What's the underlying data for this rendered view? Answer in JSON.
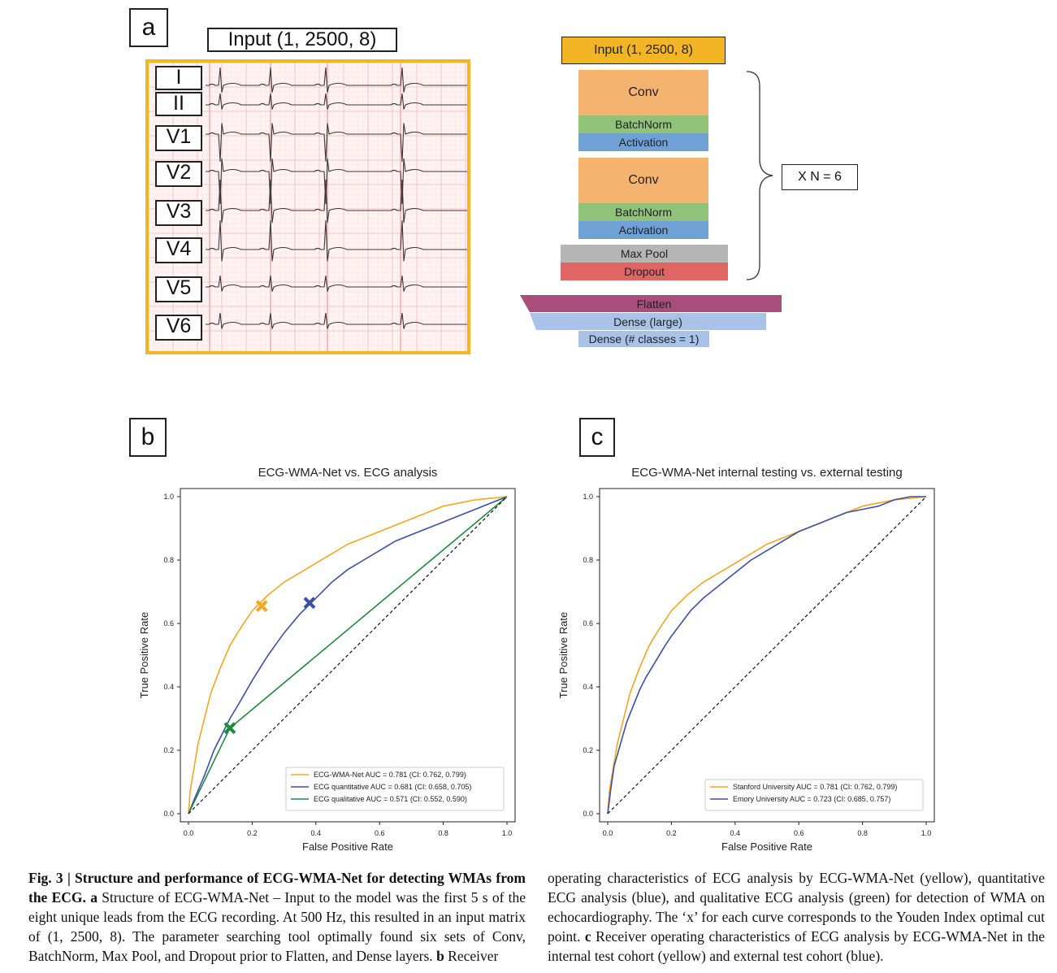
{
  "panel_a": {
    "letter": "a",
    "input_label": "Input (1, 2500, 8)",
    "leads": [
      "I",
      "II",
      "V1",
      "V2",
      "V3",
      "V4",
      "V5",
      "V6"
    ],
    "arch": {
      "input": "Input (1, 2500, 8)",
      "conv1": "Conv",
      "bn1": "BatchNorm",
      "act1": "Activation",
      "conv2": "Conv",
      "bn2": "BatchNorm",
      "act2": "Activation",
      "maxpool": "Max Pool",
      "dropout": "Dropout",
      "repeat": "X N = 6",
      "flatten": "Flatten",
      "dense_large": "Dense (large)",
      "dense_out": "Dense (# classes = 1)"
    },
    "colors": {
      "input": "#f4b524",
      "conv": "#f4b36e",
      "batchnorm": "#91c27a",
      "activation": "#6fa1d6",
      "maxpool": "#b5b5b5",
      "dropout": "#e06666",
      "flatten": "#a94e7a",
      "dense": "#a9c3e8",
      "ecg_border": "#f4b524"
    }
  },
  "panel_b": {
    "letter": "b"
  },
  "panel_c": {
    "letter": "c"
  },
  "chart_data": [
    {
      "type": "line",
      "title": "ECG-WMA-Net vs. ECG analysis",
      "xlabel": "False Positive Rate",
      "ylabel": "True Positive Rate",
      "xlim": [
        0,
        1
      ],
      "ylim": [
        0,
        1
      ],
      "xticks": [
        "0.0",
        "0.2",
        "0.4",
        "0.6",
        "0.8",
        "1.0"
      ],
      "yticks": [
        "0.0",
        "0.2",
        "0.4",
        "0.6",
        "0.8",
        "1.0"
      ],
      "legend_position": "lower-right",
      "series": [
        {
          "name": "ECG-WMA-Net AUC = 0.781 (CI: 0.762, 0.799)",
          "color": "#f5a623",
          "x": [
            0,
            0.005,
            0.01,
            0.02,
            0.03,
            0.05,
            0.07,
            0.1,
            0.13,
            0.16,
            0.2,
            0.25,
            0.3,
            0.35,
            0.4,
            0.45,
            0.5,
            0.55,
            0.6,
            0.65,
            0.7,
            0.75,
            0.8,
            0.85,
            0.9,
            0.95,
            1.0
          ],
          "y": [
            0,
            0.07,
            0.1,
            0.16,
            0.22,
            0.3,
            0.38,
            0.46,
            0.53,
            0.58,
            0.64,
            0.69,
            0.73,
            0.76,
            0.79,
            0.82,
            0.85,
            0.87,
            0.89,
            0.91,
            0.93,
            0.95,
            0.97,
            0.98,
            0.99,
            0.995,
            1.0
          ]
        },
        {
          "name": "ECG quantitative AUC = 0.681 (CI: 0.658, 0.705)",
          "color": "#3b4fa8",
          "x": [
            0,
            0.02,
            0.05,
            0.08,
            0.1,
            0.13,
            0.16,
            0.2,
            0.25,
            0.3,
            0.35,
            0.4,
            0.45,
            0.5,
            0.55,
            0.6,
            0.65,
            0.7,
            0.75,
            0.8,
            0.85,
            0.9,
            0.95,
            1.0
          ],
          "y": [
            0,
            0.05,
            0.12,
            0.2,
            0.24,
            0.3,
            0.35,
            0.42,
            0.5,
            0.57,
            0.63,
            0.68,
            0.73,
            0.77,
            0.8,
            0.83,
            0.86,
            0.88,
            0.9,
            0.92,
            0.94,
            0.96,
            0.98,
            1.0
          ]
        },
        {
          "name": "ECG qualitative AUC = 0.571 (CI: 0.552, 0.590)",
          "color": "#1f8a3b",
          "x": [
            0,
            0.13,
            1.0
          ],
          "y": [
            0,
            0.27,
            1.0
          ]
        },
        {
          "name": "chance",
          "color": "#111111",
          "dashed": true,
          "x": [
            0,
            1
          ],
          "y": [
            0,
            1
          ]
        }
      ],
      "markers": [
        {
          "series": "ECG-WMA-Net",
          "x": 0.23,
          "y": 0.655,
          "color": "#f5a623"
        },
        {
          "series": "ECG quantitative",
          "x": 0.38,
          "y": 0.665,
          "color": "#3b4fa8"
        },
        {
          "series": "ECG qualitative",
          "x": 0.13,
          "y": 0.27,
          "color": "#1f8a3b"
        }
      ]
    },
    {
      "type": "line",
      "title": "ECG-WMA-Net internal testing vs. external testing",
      "xlabel": "False Positive Rate",
      "ylabel": "True Positive Rate",
      "xlim": [
        0,
        1
      ],
      "ylim": [
        0,
        1
      ],
      "xticks": [
        "0.0",
        "0.2",
        "0.4",
        "0.6",
        "0.8",
        "1.0"
      ],
      "yticks": [
        "0.0",
        "0.2",
        "0.4",
        "0.6",
        "0.8",
        "1.0"
      ],
      "legend_position": "lower-right",
      "series": [
        {
          "name": "Stanford University AUC = 0.781 (CI: 0.762, 0.799)",
          "color": "#f5a623",
          "x": [
            0,
            0.005,
            0.01,
            0.02,
            0.03,
            0.05,
            0.07,
            0.1,
            0.13,
            0.16,
            0.2,
            0.25,
            0.3,
            0.35,
            0.4,
            0.45,
            0.5,
            0.55,
            0.6,
            0.65,
            0.7,
            0.75,
            0.8,
            0.85,
            0.9,
            0.95,
            1.0
          ],
          "y": [
            0,
            0.07,
            0.1,
            0.16,
            0.22,
            0.3,
            0.38,
            0.46,
            0.53,
            0.58,
            0.64,
            0.69,
            0.73,
            0.76,
            0.79,
            0.82,
            0.85,
            0.87,
            0.89,
            0.91,
            0.93,
            0.95,
            0.97,
            0.98,
            0.99,
            0.995,
            1.0
          ]
        },
        {
          "name": "Emory University AUC = 0.723 (CI: 0.685, 0.757)",
          "color": "#3b4fa8",
          "x": [
            0,
            0.01,
            0.02,
            0.04,
            0.06,
            0.08,
            0.1,
            0.12,
            0.15,
            0.18,
            0.2,
            0.23,
            0.26,
            0.3,
            0.35,
            0.4,
            0.45,
            0.5,
            0.55,
            0.6,
            0.65,
            0.7,
            0.75,
            0.8,
            0.85,
            0.9,
            0.95,
            1.0
          ],
          "y": [
            0,
            0.08,
            0.15,
            0.22,
            0.29,
            0.34,
            0.39,
            0.43,
            0.48,
            0.53,
            0.56,
            0.6,
            0.64,
            0.68,
            0.72,
            0.76,
            0.8,
            0.83,
            0.86,
            0.89,
            0.91,
            0.93,
            0.95,
            0.96,
            0.97,
            0.99,
            1.0,
            1.0
          ]
        },
        {
          "name": "chance",
          "color": "#111111",
          "dashed": true,
          "x": [
            0,
            1
          ],
          "y": [
            0,
            1
          ]
        }
      ],
      "markers": []
    }
  ],
  "caption": {
    "left_bold_1": "Fig. 3 | Structure and performance of ECG-WMA-Net for detecting WMAs from the ECG.",
    "left_bold_a": "a",
    "left_text_1": "Structure of ECG-WMA-Net – Input to the model was the first 5 s of the eight unique leads from the ECG recording. At 500 Hz, this resulted in an input matrix of (1, 2500, 8). The parameter searching tool optimally found six sets of Conv, BatchNorm, Max Pool, and Dropout prior to Flatten, and Dense layers.",
    "left_bold_b": "b",
    "left_text_2": "Receiver",
    "right_text_1": "operating characteristics of ECG analysis by ECG-WMA-Net (yellow), quantitative ECG analysis (blue), and qualitative ECG analysis (green) for detection of WMA on echocardiography. The ‘x’ for each curve corresponds to the Youden Index optimal cut point.",
    "right_bold_c": "c",
    "right_text_2": "Receiver operating characteristics of ECG analysis by ECG-WMA-Net in the internal test cohort (yellow) and external test cohort (blue)."
  }
}
